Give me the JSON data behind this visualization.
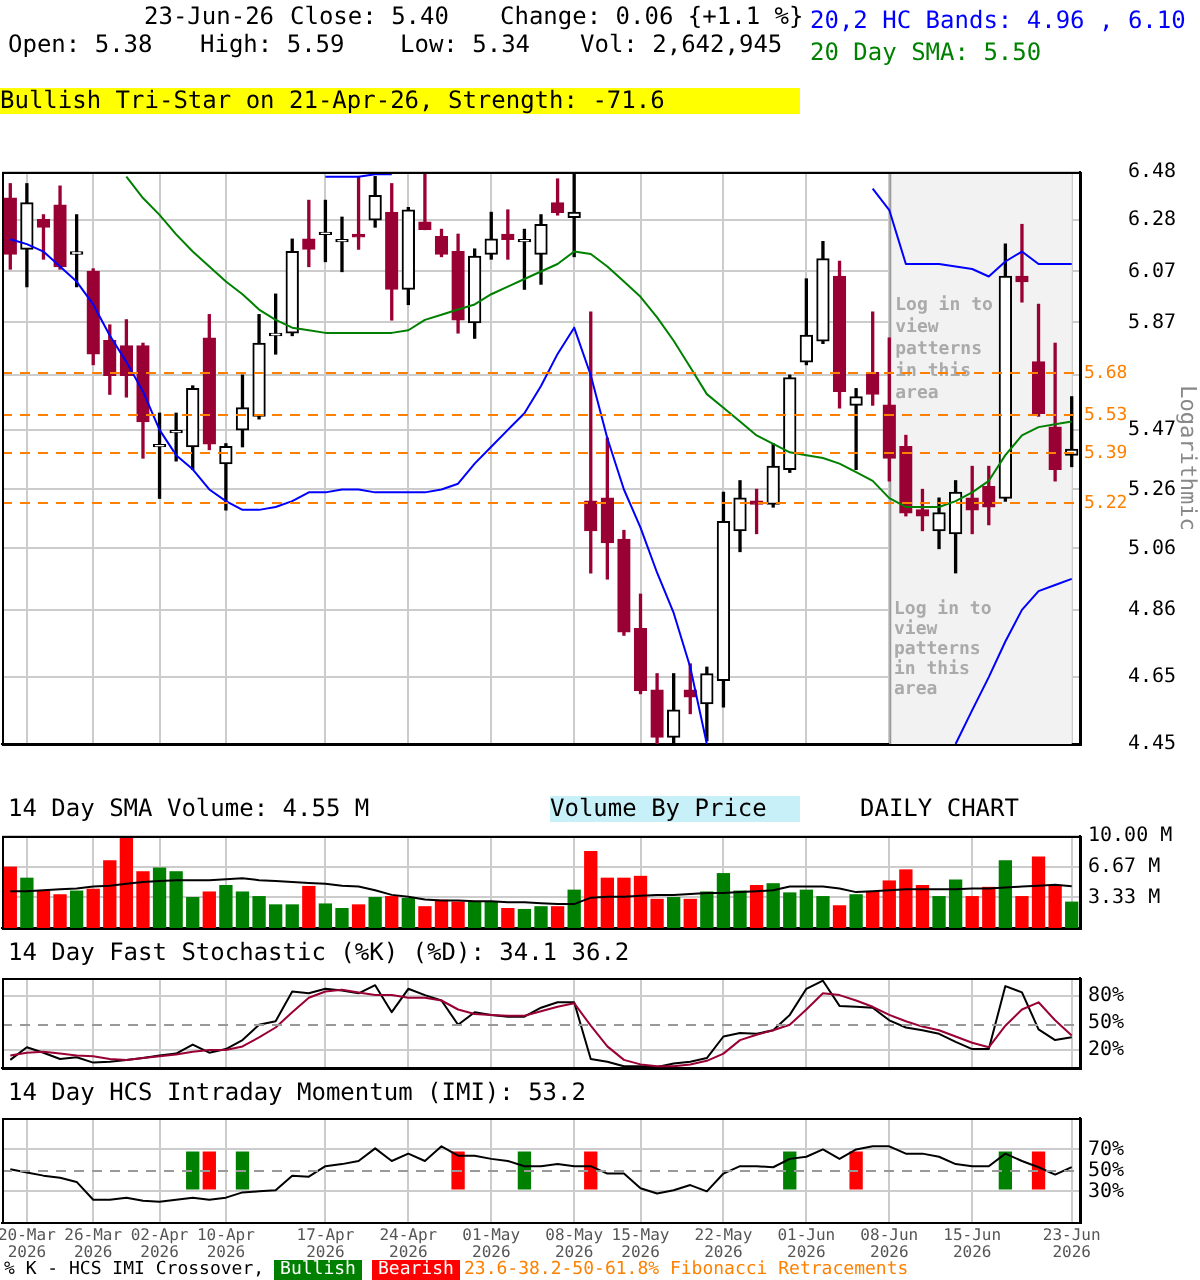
{
  "chart_data": [
    {
      "type": "candlestick",
      "annotations": [
        "23-Jun-26",
        "Close: 5.40",
        "Change: 0.06 {+1.1 %}",
        "Open: 5.38",
        "High: 5.59",
        "Low: 5.34",
        "Vol: 2,642,945",
        "Bullish Tri-Star on 21-Apr-26, Strength: -71.6",
        "Log in to view patterns in this area",
        "Volume By Price",
        "DAILY CHART"
      ],
      "categories": [
        null,
        "20-Mar 2026",
        null,
        null,
        null,
        "26-Mar 2026",
        null,
        null,
        null,
        "02-Apr 2026",
        null,
        null,
        null,
        "10-Apr 2026",
        null,
        null,
        null,
        null,
        null,
        "17-Apr 2026",
        null,
        null,
        null,
        null,
        "24-Apr 2026",
        null,
        null,
        null,
        null,
        "01-May 2026",
        null,
        null,
        null,
        null,
        "08-May 2026",
        null,
        null,
        null,
        "15-May 2026",
        null,
        null,
        null,
        null,
        "22-May 2026",
        null,
        null,
        null,
        null,
        "01-Jun 2026",
        null,
        null,
        null,
        null,
        "08-Jun 2026",
        null,
        null,
        null,
        null,
        "15-Jun 2026",
        null,
        null,
        null,
        null,
        null,
        "23-Jun 2026"
      ],
      "ohlc": [
        [
          6.37,
          6.43,
          6.08,
          6.14
        ],
        [
          6.16,
          6.43,
          6.01,
          6.35
        ],
        [
          6.28,
          6.3,
          6.12,
          6.25
        ],
        [
          6.34,
          6.42,
          6.08,
          6.09
        ],
        [
          6.14,
          6.3,
          6.01,
          6.14
        ],
        [
          6.07,
          6.08,
          5.71,
          5.75
        ],
        [
          5.8,
          5.86,
          5.6,
          5.67
        ],
        [
          5.78,
          5.88,
          5.59,
          5.67
        ],
        [
          5.78,
          5.79,
          5.37,
          5.5
        ],
        [
          5.41,
          5.53,
          5.23,
          5.41
        ],
        [
          5.46,
          5.53,
          5.36,
          5.46
        ],
        [
          5.41,
          5.63,
          5.33,
          5.62
        ],
        [
          5.81,
          5.9,
          5.4,
          5.42
        ],
        [
          5.35,
          5.42,
          5.19,
          5.41
        ],
        [
          5.47,
          5.67,
          5.41,
          5.55
        ],
        [
          5.52,
          5.9,
          5.51,
          5.79
        ],
        [
          5.82,
          5.98,
          5.75,
          5.82
        ],
        [
          5.83,
          6.2,
          5.82,
          6.15
        ],
        [
          6.2,
          6.36,
          6.09,
          6.16
        ],
        [
          6.22,
          6.36,
          6.11,
          6.22
        ],
        [
          6.19,
          6.29,
          6.07,
          6.19
        ],
        [
          6.22,
          6.46,
          6.16,
          6.21
        ],
        [
          6.28,
          6.46,
          6.25,
          6.38
        ],
        [
          6.31,
          6.43,
          5.88,
          6.0
        ],
        [
          6.0,
          6.33,
          5.94,
          6.32
        ],
        [
          6.27,
          6.47,
          6.24,
          6.24
        ],
        [
          6.21,
          6.24,
          6.13,
          6.14
        ],
        [
          6.15,
          6.22,
          5.83,
          5.88
        ],
        [
          5.87,
          6.16,
          5.81,
          6.13
        ],
        [
          6.14,
          6.31,
          6.12,
          6.2
        ],
        [
          6.22,
          6.32,
          6.12,
          6.2
        ],
        [
          6.19,
          6.24,
          6.0,
          6.19
        ],
        [
          6.14,
          6.3,
          6.02,
          6.26
        ],
        [
          6.35,
          6.45,
          6.3,
          6.31
        ],
        [
          6.29,
          6.47,
          6.13,
          6.31
        ],
        [
          5.22,
          5.91,
          4.98,
          5.12
        ],
        [
          5.23,
          5.44,
          4.96,
          5.08
        ],
        [
          5.09,
          5.12,
          4.78,
          4.79
        ],
        [
          4.8,
          4.91,
          4.6,
          4.61
        ],
        [
          4.61,
          4.66,
          4.45,
          4.47
        ],
        [
          4.47,
          4.66,
          4.45,
          4.55
        ],
        [
          4.61,
          4.69,
          4.54,
          4.59
        ],
        [
          4.57,
          4.68,
          4.46,
          4.66
        ],
        [
          4.64,
          5.25,
          4.56,
          5.15
        ],
        [
          5.12,
          5.29,
          5.05,
          5.23
        ],
        [
          5.22,
          5.26,
          5.11,
          5.21
        ],
        [
          5.21,
          5.42,
          5.2,
          5.34
        ],
        [
          5.33,
          5.67,
          5.32,
          5.66
        ],
        [
          5.72,
          6.04,
          5.71,
          5.82
        ],
        [
          5.8,
          6.19,
          5.79,
          6.12
        ],
        [
          6.05,
          6.11,
          5.55,
          5.61
        ],
        [
          5.56,
          5.62,
          5.33,
          5.59
        ],
        [
          5.68,
          5.91,
          5.56,
          5.6
        ],
        [
          5.56,
          5.81,
          5.29,
          5.37
        ],
        [
          5.41,
          5.45,
          5.17,
          5.18
        ],
        [
          5.19,
          5.26,
          5.12,
          5.17
        ],
        [
          5.12,
          5.23,
          5.06,
          5.18
        ],
        [
          5.11,
          5.29,
          4.98,
          5.25
        ],
        [
          5.23,
          5.34,
          5.11,
          5.19
        ],
        [
          5.27,
          5.34,
          5.14,
          5.2
        ],
        [
          5.23,
          6.18,
          5.22,
          6.05
        ],
        [
          6.05,
          6.26,
          5.95,
          6.03
        ],
        [
          5.72,
          5.94,
          5.52,
          5.53
        ],
        [
          5.48,
          5.79,
          5.29,
          5.33
        ],
        [
          5.38,
          5.59,
          5.34,
          5.4
        ]
      ],
      "series": [
        {
          "type": "line",
          "name": "20,2 HC Bands: 4.96 , 6.10",
          "color": "#0000ff",
          "values": [
            null,
            null,
            null,
            null,
            null,
            null,
            null,
            null,
            null,
            null,
            null,
            null,
            null,
            null,
            null,
            null,
            null,
            null,
            null,
            6.46,
            6.46,
            6.46,
            6.47,
            6.47,
            null,
            null,
            null,
            null,
            null,
            null,
            null,
            null,
            null,
            null,
            null,
            null,
            null,
            null,
            null,
            null,
            null,
            null,
            null,
            null,
            null,
            null,
            null,
            null,
            null,
            null,
            null,
            null,
            6.41,
            6.32,
            6.1,
            6.1,
            6.1,
            6.09,
            6.08,
            6.05,
            6.11,
            6.15,
            6.1,
            6.1,
            6.1
          ]
        },
        {
          "type": "line",
          "color": "#0000ff",
          "values": [
            6.2,
            6.18,
            6.15,
            6.09,
            6.03,
            5.94,
            5.82,
            5.72,
            5.61,
            5.47,
            5.38,
            5.33,
            5.26,
            5.22,
            5.19,
            5.19,
            5.2,
            5.22,
            5.25,
            5.25,
            5.26,
            5.26,
            5.25,
            5.25,
            5.25,
            5.25,
            5.26,
            5.28,
            5.35,
            5.41,
            5.47,
            5.53,
            5.63,
            5.75,
            5.85,
            5.67,
            5.44,
            5.26,
            5.13,
            4.98,
            4.85,
            4.68,
            4.45,
            null,
            null,
            null,
            null,
            null,
            null,
            null,
            null,
            null,
            null,
            null,
            null,
            null,
            null,
            4.45,
            4.55,
            4.65,
            4.76,
            4.86,
            4.92,
            4.94,
            4.96
          ]
        },
        {
          "type": "line",
          "name": "20 Day SMA: 5.50",
          "color": "#008000",
          "values": [
            null,
            null,
            null,
            null,
            null,
            null,
            null,
            6.46,
            6.37,
            6.3,
            6.22,
            6.15,
            6.09,
            6.03,
            5.98,
            5.92,
            5.88,
            5.85,
            5.84,
            5.83,
            5.83,
            5.83,
            5.83,
            5.83,
            5.84,
            5.88,
            5.9,
            5.92,
            5.94,
            5.98,
            6.01,
            6.04,
            6.07,
            6.1,
            6.15,
            6.14,
            6.09,
            6.03,
            5.97,
            5.89,
            5.8,
            5.7,
            5.6,
            5.55,
            5.5,
            5.45,
            5.42,
            5.39,
            5.38,
            5.37,
            5.35,
            5.32,
            5.29,
            5.23,
            5.2,
            5.2,
            5.2,
            5.22,
            5.25,
            5.29,
            5.38,
            5.45,
            5.48,
            5.49,
            5.5
          ]
        }
      ],
      "ylabel": "Logarithmic",
      "log": true,
      "ylim": [
        4.45,
        6.48
      ],
      "yticks": [
        4.45,
        4.65,
        4.86,
        5.06,
        5.26,
        5.47,
        {
          "value": 5.67,
          "label": null
        },
        5.87,
        6.07,
        6.28,
        6.48
      ],
      "grid": true,
      "tick_labels": "y",
      "legend": "top right",
      "ref_lines": [
        {
          "axis": "y",
          "value": 5.68,
          "label": "5.68",
          "color": "#ff8000",
          "line_style": "dashed"
        },
        {
          "axis": "y",
          "value": 5.53,
          "label": "5.53",
          "color": "#ff8000",
          "line_style": "dashed"
        },
        {
          "axis": "y",
          "value": 5.39,
          "label": "5.39",
          "color": "#ff8000",
          "line_style": "dashed"
        },
        {
          "axis": "y",
          "value": 5.22,
          "label": "5.22",
          "color": "#ff8000",
          "line_style": "dashed"
        }
      ],
      "bands": [
        {
          "axis": "x",
          "from": "08-Jun 2026",
          "to": "23-Jun 2026",
          "label": "Log in to view patterns in this area",
          "color": "#f2f2f2"
        }
      ]
    },
    {
      "type": "bar",
      "title": "14 Day SMA Volume: 4.55 M",
      "categories": [
        null,
        "20-Mar 2026",
        null,
        null,
        null,
        "26-Mar 2026",
        null,
        null,
        null,
        "02-Apr 2026",
        null,
        null,
        null,
        "10-Apr 2026",
        null,
        null,
        null,
        null,
        null,
        "17-Apr 2026",
        null,
        null,
        null,
        null,
        "24-Apr 2026",
        null,
        null,
        null,
        null,
        "01-May 2026",
        null,
        null,
        null,
        null,
        "08-May 2026",
        null,
        null,
        null,
        "15-May 2026",
        null,
        null,
        null,
        null,
        "22-May 2026",
        null,
        null,
        null,
        null,
        "01-Jun 2026",
        null,
        null,
        null,
        null,
        "08-Jun 2026",
        null,
        null,
        null,
        null,
        "15-Jun 2026",
        null,
        null,
        null,
        null,
        null,
        "23-Jun 2026"
      ],
      "series": [
        {
          "type": "bar",
          "values": [
            6.6,
            5.4,
            4.0,
            3.6,
            4.0,
            4.2,
            7.3,
            10.0,
            6.1,
            6.5,
            6.1,
            3.3,
            3.9,
            4.6,
            3.9,
            3.4,
            2.5,
            2.5,
            4.5,
            2.6,
            2.1,
            2.5,
            3.3,
            3.4,
            3.2,
            2.3,
            3.0,
            2.8,
            2.8,
            2.8,
            2.1,
            2.0,
            2.3,
            2.3,
            4.1,
            8.3,
            5.4,
            5.4,
            5.6,
            3.1,
            3.3,
            3.1,
            3.9,
            5.9,
            4.0,
            4.6,
            4.8,
            3.8,
            4.1,
            3.4,
            2.4,
            3.6,
            3.9,
            5.1,
            6.3,
            4.6,
            3.4,
            5.2,
            3.4,
            4.4,
            7.3,
            3.4,
            7.7,
            4.5,
            2.8
          ],
          "colors": [
            "#ff0000",
            "#008000",
            "#ff0000",
            "#ff0000",
            "#008000",
            "#ff0000",
            "#ff0000",
            "#ff0000",
            "#ff0000",
            "#008000",
            "#008000",
            "#008000",
            "#ff0000",
            "#008000",
            "#008000",
            "#008000",
            "#008000",
            "#008000",
            "#ff0000",
            "#008000",
            "#008000",
            "#ff0000",
            "#008000",
            "#ff0000",
            "#008000",
            "#ff0000",
            "#ff0000",
            "#ff0000",
            "#008000",
            "#008000",
            "#ff0000",
            "#008000",
            "#008000",
            "#ff0000",
            "#008000",
            "#ff0000",
            "#ff0000",
            "#ff0000",
            "#ff0000",
            "#ff0000",
            "#008000",
            "#ff0000",
            "#008000",
            "#008000",
            "#008000",
            "#ff0000",
            "#008000",
            "#008000",
            "#008000",
            "#008000",
            "#ff0000",
            "#008000",
            "#ff0000",
            "#ff0000",
            "#ff0000",
            "#ff0000",
            "#008000",
            "#008000",
            "#ff0000",
            "#ff0000",
            "#008000",
            "#ff0000",
            "#ff0000",
            "#ff0000",
            "#008000"
          ]
        },
        {
          "type": "line",
          "color": "#000000",
          "values": [
            4.0,
            4.0,
            4.1,
            4.2,
            4.3,
            4.5,
            4.6,
            4.8,
            5.0,
            5.1,
            5.2,
            5.2,
            5.2,
            5.3,
            5.4,
            5.2,
            5.1,
            5.0,
            4.9,
            4.8,
            4.6,
            4.5,
            4.1,
            3.6,
            3.4,
            3.1,
            3.0,
            3.0,
            2.9,
            2.9,
            2.8,
            2.8,
            2.7,
            2.6,
            2.6,
            3.3,
            3.4,
            3.4,
            3.5,
            3.6,
            3.6,
            3.7,
            3.8,
            3.8,
            3.9,
            4.0,
            4.1,
            4.5,
            4.5,
            4.5,
            4.3,
            3.9,
            4.0,
            4.1,
            4.2,
            4.2,
            4.2,
            4.2,
            4.3,
            4.3,
            4.4,
            4.5,
            4.6,
            4.7,
            4.55
          ]
        }
      ],
      "ylim": [
        0,
        10
      ],
      "yticks": [
        {
          "value": 3.33,
          "label": "3.33 M"
        },
        {
          "value": 6.67,
          "label": "6.67 M"
        },
        {
          "value": 10,
          "label": "10.00 M"
        }
      ],
      "grid": true,
      "tick_labels": "y"
    },
    {
      "type": "line",
      "title": "14 Day Fast Stochastic (%K) (%D): 34.1 36.2",
      "categories": [
        null,
        "20-Mar 2026",
        null,
        null,
        null,
        "26-Mar 2026",
        null,
        null,
        null,
        "02-Apr 2026",
        null,
        null,
        null,
        "10-Apr 2026",
        null,
        null,
        null,
        null,
        null,
        "17-Apr 2026",
        null,
        null,
        null,
        null,
        "24-Apr 2026",
        null,
        null,
        null,
        null,
        "01-May 2026",
        null,
        null,
        null,
        null,
        "08-May 2026",
        null,
        null,
        null,
        "15-May 2026",
        null,
        null,
        null,
        null,
        "22-May 2026",
        null,
        null,
        null,
        null,
        "01-Jun 2026",
        null,
        null,
        null,
        null,
        "08-Jun 2026",
        null,
        null,
        null,
        null,
        "15-Jun 2026",
        null,
        null,
        null,
        null,
        null,
        "23-Jun 2026"
      ],
      "series": [
        {
          "color": "#990033",
          "values": [
            14,
            17,
            18,
            16,
            14,
            13,
            10,
            9,
            11,
            13,
            15,
            18,
            20,
            20,
            24,
            34,
            45,
            62,
            78,
            85,
            87,
            84,
            81,
            81,
            78,
            78,
            75,
            65,
            60,
            59,
            58,
            58,
            63,
            68,
            72,
            47,
            24,
            9,
            4,
            2,
            2,
            4,
            8,
            16,
            31,
            37,
            42,
            48,
            65,
            83,
            81,
            75,
            68,
            59,
            52,
            46,
            42,
            35,
            28,
            23,
            47,
            65,
            73,
            53,
            36.2
          ]
        },
        {
          "color": "#000000",
          "values": [
            9,
            23,
            17,
            10,
            12,
            6,
            7,
            9,
            11,
            14,
            16,
            26,
            17,
            21,
            31,
            48,
            52,
            85,
            83,
            88,
            86,
            83,
            92,
            62,
            88,
            81,
            75,
            48,
            62,
            59,
            57,
            57,
            67,
            73,
            73,
            10,
            7,
            2,
            2,
            1,
            5,
            7,
            11,
            35,
            39,
            38,
            42,
            59,
            88,
            97,
            69,
            68,
            67,
            53,
            45,
            42,
            38,
            29,
            21,
            21,
            91,
            84,
            43,
            31,
            34.1
          ]
        }
      ],
      "ylim": [
        0,
        100
      ],
      "yticks": [
        {
          "value": 20,
          "label": "20%"
        },
        {
          "value": 50,
          "label": "50%"
        },
        {
          "value": 80,
          "label": "80%"
        }
      ],
      "ref_lines": [
        {
          "axis": "y",
          "value": 50,
          "color": "#999999",
          "line_style": "dashed"
        }
      ],
      "grid": true,
      "tick_labels": "y"
    },
    {
      "type": "line",
      "title": "14 Day HCS Intraday Momentum (IMI): 53.2",
      "categories": [
        null,
        "20-Mar 2026",
        null,
        null,
        null,
        "26-Mar 2026",
        null,
        null,
        null,
        "02-Apr 2026",
        null,
        null,
        null,
        "10-Apr 2026",
        null,
        null,
        null,
        null,
        null,
        "17-Apr 2026",
        null,
        null,
        null,
        null,
        "24-Apr 2026",
        null,
        null,
        null,
        null,
        "01-May 2026",
        null,
        null,
        null,
        null,
        "08-May 2026",
        null,
        null,
        null,
        "15-May 2026",
        null,
        null,
        null,
        null,
        "22-May 2026",
        null,
        null,
        null,
        null,
        "01-Jun 2026",
        null,
        null,
        null,
        null,
        "08-Jun 2026",
        null,
        null,
        null,
        null,
        "15-Jun 2026",
        null,
        null,
        null,
        null,
        null,
        "23-Jun 2026"
      ],
      "series": [
        {
          "color": "#000000",
          "values": [
            51,
            48,
            45,
            43,
            39,
            22,
            22,
            24,
            21,
            20,
            22,
            24,
            22,
            24,
            29,
            30,
            31,
            45,
            44,
            54,
            56,
            59,
            71,
            59,
            66,
            59,
            73,
            64,
            64,
            61,
            59,
            54,
            54,
            56,
            54,
            54,
            47,
            47,
            33,
            28,
            31,
            36,
            30,
            47,
            54,
            54,
            53,
            61,
            63,
            70,
            61,
            70,
            73,
            73,
            66,
            66,
            63,
            56,
            54,
            54,
            66,
            59,
            53,
            46,
            53.2
          ]
        },
        {
          "type": "bar",
          "name": "Bullish",
          "color": "#008000",
          "values": [
            null,
            null,
            null,
            null,
            null,
            null,
            null,
            null,
            null,
            null,
            null,
            35,
            null,
            null,
            35,
            null,
            null,
            null,
            null,
            null,
            null,
            null,
            null,
            null,
            null,
            null,
            null,
            null,
            null,
            null,
            null,
            35,
            null,
            null,
            null,
            null,
            null,
            null,
            null,
            null,
            null,
            null,
            null,
            null,
            null,
            null,
            null,
            35,
            null,
            null,
            null,
            null,
            null,
            null,
            null,
            null,
            null,
            null,
            null,
            null,
            35,
            null,
            null,
            null,
            null
          ],
          "base": [
            null,
            null,
            null,
            null,
            null,
            null,
            null,
            null,
            null,
            null,
            null,
            32.5,
            null,
            null,
            32.5,
            null,
            null,
            null,
            null,
            null,
            null,
            null,
            null,
            null,
            null,
            null,
            null,
            null,
            null,
            null,
            null,
            32.5,
            null,
            null,
            null,
            null,
            null,
            null,
            null,
            null,
            null,
            null,
            null,
            null,
            null,
            null,
            null,
            32.5,
            null,
            null,
            null,
            null,
            null,
            null,
            null,
            null,
            null,
            null,
            null,
            null,
            32.5,
            null,
            null,
            null,
            null
          ]
        },
        {
          "type": "bar",
          "name": "Bearish",
          "color": "#ff0000",
          "values": [
            null,
            null,
            null,
            null,
            null,
            null,
            null,
            null,
            null,
            null,
            null,
            null,
            35,
            null,
            null,
            null,
            null,
            null,
            null,
            null,
            null,
            null,
            null,
            null,
            null,
            null,
            null,
            35,
            null,
            null,
            null,
            null,
            null,
            null,
            null,
            35,
            null,
            null,
            null,
            null,
            null,
            null,
            null,
            null,
            null,
            null,
            null,
            null,
            null,
            null,
            null,
            35,
            null,
            null,
            null,
            null,
            null,
            null,
            null,
            null,
            null,
            null,
            35,
            null,
            null
          ],
          "base": [
            null,
            null,
            null,
            null,
            null,
            null,
            null,
            null,
            null,
            null,
            null,
            null,
            32.5,
            null,
            null,
            null,
            null,
            null,
            null,
            null,
            null,
            null,
            null,
            null,
            null,
            null,
            null,
            32.5,
            null,
            null,
            null,
            null,
            null,
            null,
            null,
            32.5,
            null,
            null,
            null,
            null,
            null,
            null,
            null,
            null,
            null,
            null,
            null,
            null,
            null,
            null,
            null,
            32.5,
            null,
            null,
            null,
            null,
            null,
            null,
            null,
            null,
            null,
            null,
            32.5,
            null,
            null
          ]
        }
      ],
      "ylim": [
        0,
        100
      ],
      "yticks": [
        {
          "value": 30,
          "label": "30%"
        },
        {
          "value": 50,
          "label": "50%"
        },
        {
          "value": 70,
          "label": "70%"
        }
      ],
      "ref_lines": [
        {
          "axis": "y",
          "value": 50,
          "color": "#999999",
          "line_style": "dashed"
        }
      ],
      "grid": true,
      "legend": "bottom left",
      "legend_title": "% K - HCS IMI Crossover,",
      "annotations": [
        "23.6-38.2-50-61.8% Fibonacci Retracements"
      ]
    }
  ]
}
